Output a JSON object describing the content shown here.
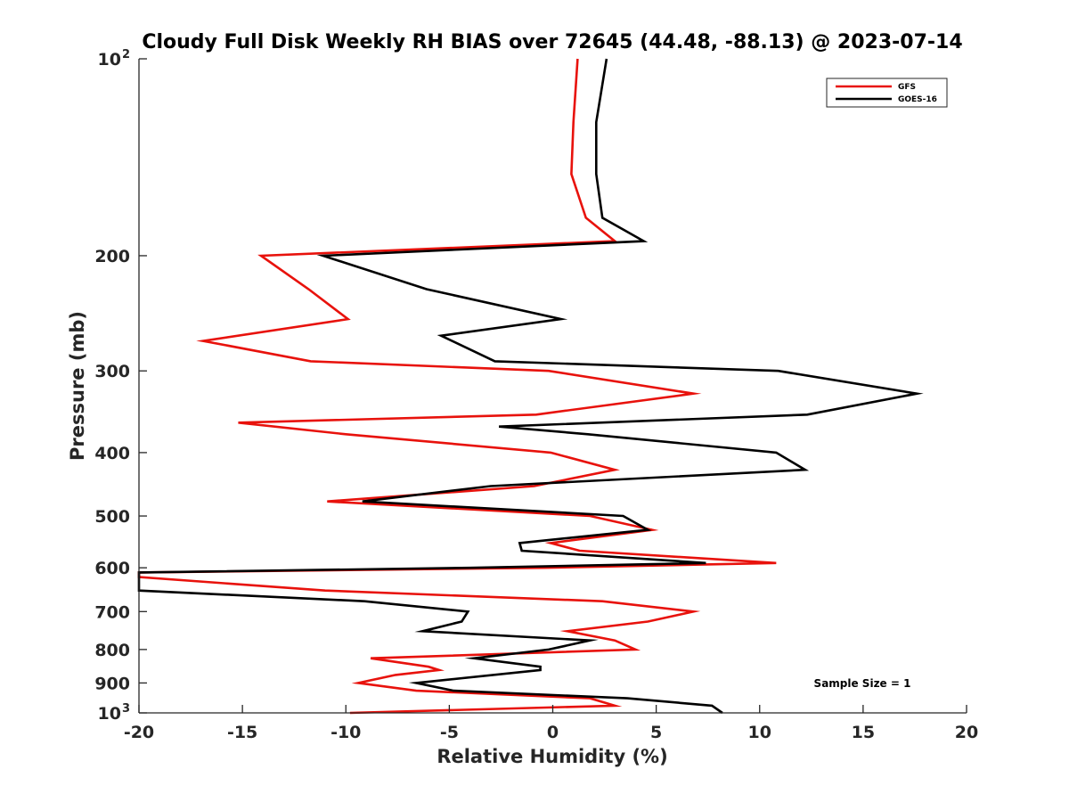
{
  "chart_data": {
    "type": "line",
    "title": "Cloudy Full Disk Weekly RH BIAS over 72645 (44.48, -88.13) @ 2023-07-14",
    "xlabel": "Relative Humidity (%)",
    "ylabel": "Pressure (mb)",
    "xlim": [
      -20,
      20
    ],
    "ylim": [
      100,
      1000
    ],
    "y_scale": "log",
    "y_reversed": true,
    "x_ticks": [
      "-20",
      "-15",
      "-10",
      "-5",
      "0",
      "5",
      "10",
      "15",
      "20"
    ],
    "y_ticks": [
      {
        "value": 100,
        "label": "10",
        "sup": "2"
      },
      {
        "value": 200,
        "label": "200"
      },
      {
        "value": 300,
        "label": "300"
      },
      {
        "value": 400,
        "label": "400"
      },
      {
        "value": 500,
        "label": "500"
      },
      {
        "value": 600,
        "label": "600"
      },
      {
        "value": 700,
        "label": "700"
      },
      {
        "value": 800,
        "label": "800"
      },
      {
        "value": 900,
        "label": "900"
      },
      {
        "value": 1000,
        "label": "10",
        "sup": "3"
      }
    ],
    "grid": false,
    "legend_position": "top-right",
    "annotation": "Sample Size = 1",
    "series": [
      {
        "name": "GFS",
        "color": "#e8120c",
        "points": [
          [
            1.2,
            100
          ],
          [
            1.0,
            125
          ],
          [
            0.9,
            150
          ],
          [
            1.6,
            175
          ],
          [
            3.0,
            190
          ],
          [
            -14.1,
            200
          ],
          [
            -11.8,
            225
          ],
          [
            -9.9,
            250
          ],
          [
            -16.9,
            270
          ],
          [
            -11.7,
            290
          ],
          [
            -0.2,
            300
          ],
          [
            6.8,
            325
          ],
          [
            -0.8,
            350
          ],
          [
            -15.2,
            360
          ],
          [
            -10.0,
            375
          ],
          [
            -0.1,
            400
          ],
          [
            3.0,
            425
          ],
          [
            -0.9,
            450
          ],
          [
            -10.9,
            475
          ],
          [
            1.8,
            500
          ],
          [
            4.8,
            525
          ],
          [
            -0.1,
            550
          ],
          [
            1.3,
            565
          ],
          [
            10.8,
            590
          ],
          [
            -0.4,
            600
          ],
          [
            -20.0,
            610
          ],
          [
            -20.0,
            620
          ],
          [
            -11.0,
            650
          ],
          [
            2.4,
            675
          ],
          [
            6.8,
            700
          ],
          [
            4.6,
            725
          ],
          [
            0.7,
            750
          ],
          [
            3.0,
            775
          ],
          [
            4.0,
            800
          ],
          [
            -8.8,
            825
          ],
          [
            -6.0,
            850
          ],
          [
            -5.5,
            860
          ],
          [
            -7.6,
            875
          ],
          [
            -9.4,
            900
          ],
          [
            -6.6,
            925
          ],
          [
            1.8,
            950
          ],
          [
            3.0,
            975
          ],
          [
            -9.8,
            1000
          ]
        ]
      },
      {
        "name": "GOES-16",
        "color": "#000000",
        "points": [
          [
            2.6,
            100
          ],
          [
            2.1,
            125
          ],
          [
            2.1,
            150
          ],
          [
            2.4,
            175
          ],
          [
            4.4,
            190
          ],
          [
            -11.1,
            200
          ],
          [
            -6.1,
            225
          ],
          [
            0.4,
            250
          ],
          [
            -5.4,
            265
          ],
          [
            -2.8,
            290
          ],
          [
            10.9,
            300
          ],
          [
            17.6,
            325
          ],
          [
            12.3,
            350
          ],
          [
            -2.6,
            365
          ],
          [
            1.7,
            375
          ],
          [
            10.8,
            400
          ],
          [
            12.2,
            425
          ],
          [
            -3.0,
            450
          ],
          [
            -9.2,
            475
          ],
          [
            3.4,
            500
          ],
          [
            4.6,
            525
          ],
          [
            -1.6,
            550
          ],
          [
            -1.5,
            565
          ],
          [
            7.4,
            590
          ],
          [
            -4.0,
            600
          ],
          [
            -20.0,
            610
          ],
          [
            -20.0,
            650
          ],
          [
            -9.1,
            675
          ],
          [
            -4.1,
            700
          ],
          [
            -4.4,
            725
          ],
          [
            -6.3,
            750
          ],
          [
            1.8,
            775
          ],
          [
            -0.2,
            800
          ],
          [
            -3.8,
            825
          ],
          [
            -0.6,
            850
          ],
          [
            -0.6,
            860
          ],
          [
            -6.6,
            900
          ],
          [
            -4.8,
            925
          ],
          [
            3.6,
            950
          ],
          [
            7.7,
            975
          ],
          [
            8.2,
            1000
          ]
        ]
      }
    ]
  }
}
